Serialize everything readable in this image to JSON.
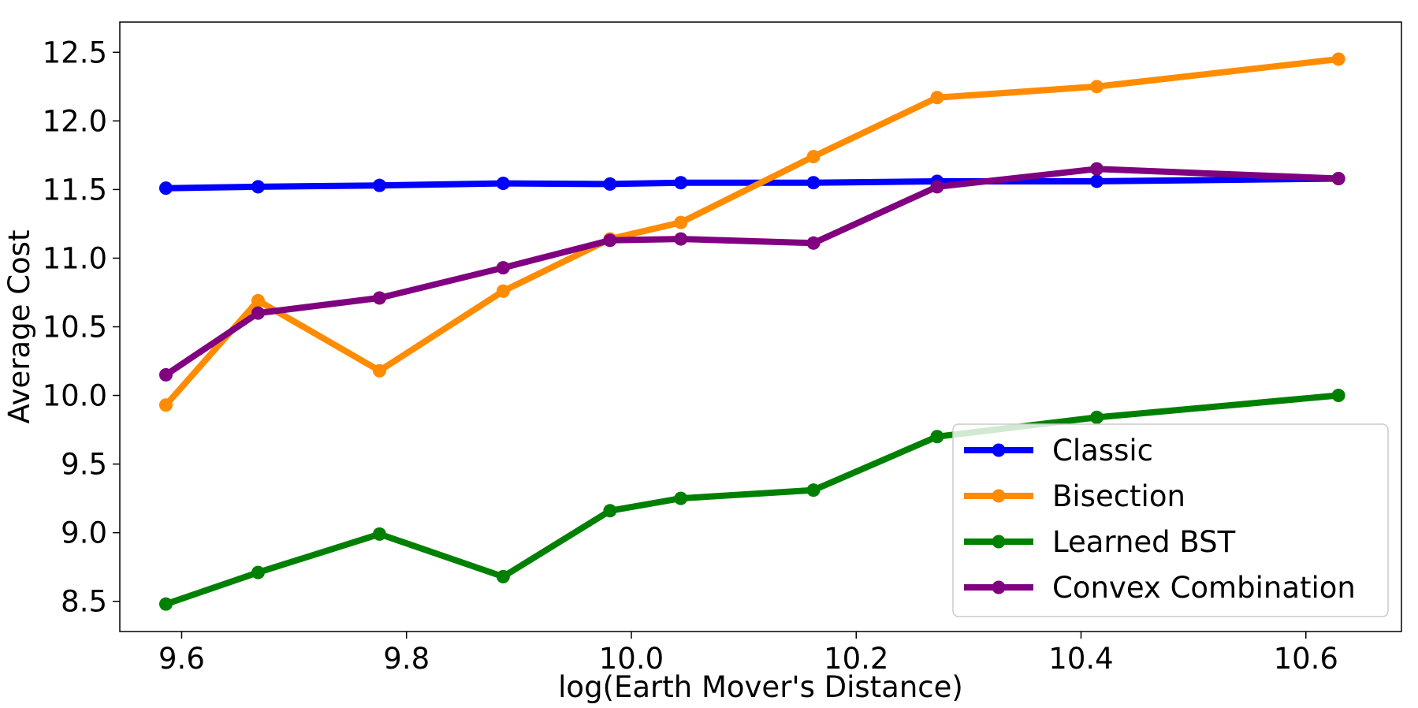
{
  "chart_data": {
    "type": "line",
    "title": "",
    "xlabel": "log(Earth Mover's Distance)",
    "ylabel": "Average Cost",
    "xlim": [
      9.545,
      10.685
    ],
    "ylim": [
      8.28,
      12.72
    ],
    "xticks": [
      9.6,
      9.8,
      10.0,
      10.2,
      10.4,
      10.6
    ],
    "xtick_labels": [
      "9.6",
      "9.8",
      "10.0",
      "10.2",
      "10.4",
      "10.6"
    ],
    "yticks": [
      8.5,
      9.0,
      9.5,
      10.0,
      10.5,
      11.0,
      11.5,
      12.0,
      12.5
    ],
    "ytick_labels": [
      "8.5",
      "9.0",
      "9.5",
      "10.0",
      "10.5",
      "11.0",
      "11.5",
      "12.0",
      "12.5"
    ],
    "grid": false,
    "legend_position": "lower-right",
    "x": [
      9.586,
      9.668,
      9.776,
      9.886,
      9.981,
      10.044,
      10.162,
      10.272,
      10.414,
      10.629
    ],
    "series": [
      {
        "name": "Classic",
        "color": "#0000ff",
        "values": [
          11.51,
          11.52,
          11.53,
          11.545,
          11.54,
          11.55,
          11.55,
          11.56,
          11.56,
          11.58
        ]
      },
      {
        "name": "Bisection",
        "color": "#ff8c00",
        "values": [
          9.93,
          10.69,
          10.18,
          10.76,
          11.14,
          11.26,
          11.74,
          12.17,
          12.25,
          12.45
        ]
      },
      {
        "name": "Learned BST",
        "color": "#008000",
        "values": [
          8.48,
          8.71,
          8.99,
          8.68,
          9.16,
          9.25,
          9.31,
          9.7,
          9.84,
          10.0
        ]
      },
      {
        "name": "Convex Combination",
        "color": "#800080",
        "values": [
          10.15,
          10.6,
          10.71,
          10.93,
          11.13,
          11.14,
          11.11,
          11.52,
          11.65,
          11.58
        ]
      }
    ]
  }
}
